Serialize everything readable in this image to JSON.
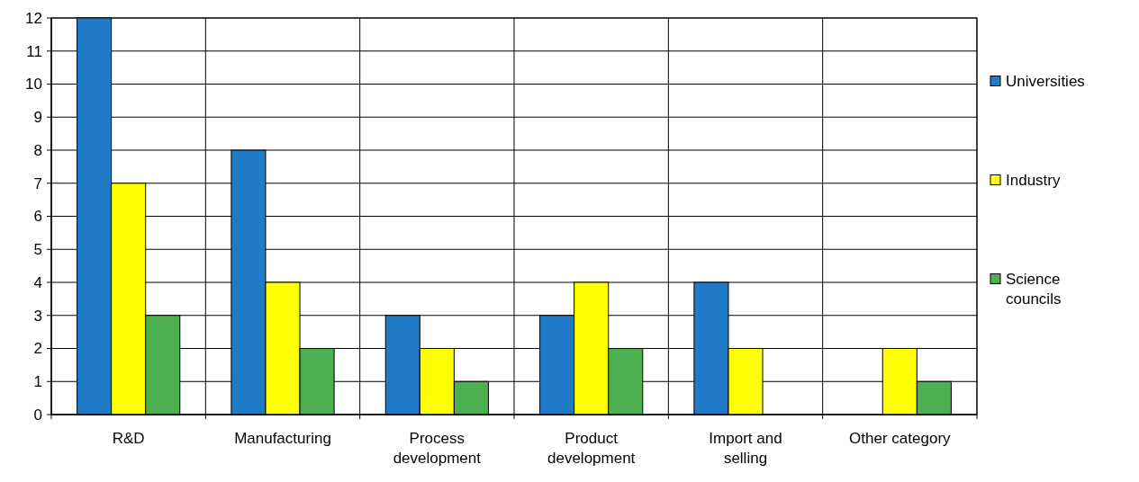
{
  "chart_data": {
    "type": "bar",
    "categories": [
      "R&D",
      "Manufacturing",
      "Process development",
      "Product development",
      "Import and selling",
      "Other category"
    ],
    "series": [
      {
        "name": "Universities",
        "color": "#1f7ac8",
        "values": [
          12,
          8,
          3,
          3,
          4,
          0
        ]
      },
      {
        "name": "Industry",
        "color": "#ffff00",
        "values": [
          7,
          4,
          2,
          4,
          2,
          2
        ]
      },
      {
        "name": "Science councils",
        "color": "#4caf50",
        "values": [
          3,
          2,
          1,
          2,
          0,
          1
        ]
      }
    ],
    "ylim": [
      0,
      12
    ],
    "yticks": [
      0,
      1,
      2,
      3,
      4,
      5,
      6,
      7,
      8,
      9,
      10,
      11,
      12
    ],
    "grid": true,
    "legend": "right"
  }
}
